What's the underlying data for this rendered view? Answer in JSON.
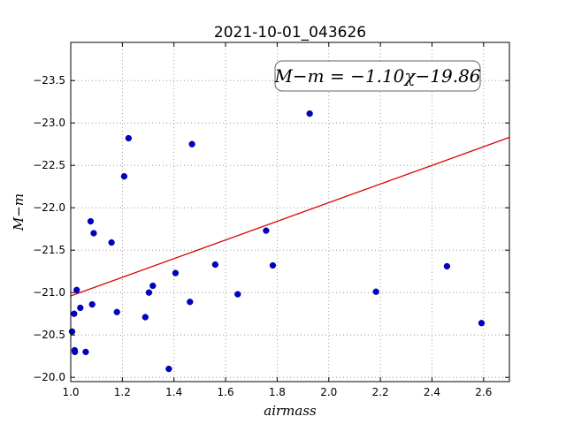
{
  "chart_data": {
    "type": "scatter",
    "title": "2021-10-01_043626",
    "xlabel": "airmass",
    "ylabel": "M−m",
    "xlim": [
      1.0,
      2.7
    ],
    "ylim": [
      -23.95,
      -19.95
    ],
    "y_inverted": true,
    "grid": true,
    "x_ticks": [
      1.0,
      1.2,
      1.4,
      1.6,
      1.8,
      2.0,
      2.2,
      2.4,
      2.6
    ],
    "x_tick_labels": [
      "1.0",
      "1.2",
      "1.4",
      "1.6",
      "1.8",
      "2.0",
      "2.2",
      "2.4",
      "2.6"
    ],
    "y_ticks": [
      -20.0,
      -20.5,
      -21.0,
      -21.5,
      -22.0,
      -22.5,
      -23.0,
      -23.5
    ],
    "y_tick_labels": [
      "−20.0",
      "−20.5",
      "−21.0",
      "−21.5",
      "−22.0",
      "−22.5",
      "−23.0",
      "−23.5"
    ],
    "annotation": "M−m = −1.10χ−19.86",
    "fit": {
      "slope": -1.1,
      "intercept": -19.86
    },
    "colors": {
      "points": "#0000cc",
      "fit_line": "#dd0000",
      "grid": "#888888"
    },
    "points": [
      {
        "x": 1.005,
        "y": -20.54
      },
      {
        "x": 1.015,
        "y": -20.32
      },
      {
        "x": 1.016,
        "y": -20.3
      },
      {
        "x": 1.013,
        "y": -20.75
      },
      {
        "x": 1.023,
        "y": -21.03
      },
      {
        "x": 1.037,
        "y": -20.82
      },
      {
        "x": 1.058,
        "y": -20.3
      },
      {
        "x": 1.083,
        "y": -20.86
      },
      {
        "x": 1.077,
        "y": -21.84
      },
      {
        "x": 1.089,
        "y": -21.7
      },
      {
        "x": 1.158,
        "y": -21.59
      },
      {
        "x": 1.179,
        "y": -20.77
      },
      {
        "x": 1.207,
        "y": -22.37
      },
      {
        "x": 1.224,
        "y": -22.82
      },
      {
        "x": 1.289,
        "y": -20.71
      },
      {
        "x": 1.303,
        "y": -21.0
      },
      {
        "x": 1.318,
        "y": -21.08
      },
      {
        "x": 1.38,
        "y": -20.1
      },
      {
        "x": 1.406,
        "y": -21.23
      },
      {
        "x": 1.462,
        "y": -20.89
      },
      {
        "x": 1.47,
        "y": -22.75
      },
      {
        "x": 1.56,
        "y": -21.33
      },
      {
        "x": 1.647,
        "y": -20.98
      },
      {
        "x": 1.757,
        "y": -21.73
      },
      {
        "x": 1.783,
        "y": -21.32
      },
      {
        "x": 1.926,
        "y": -23.11
      },
      {
        "x": 2.183,
        "y": -21.01
      },
      {
        "x": 2.458,
        "y": -21.31
      },
      {
        "x": 2.592,
        "y": -20.64
      }
    ]
  }
}
